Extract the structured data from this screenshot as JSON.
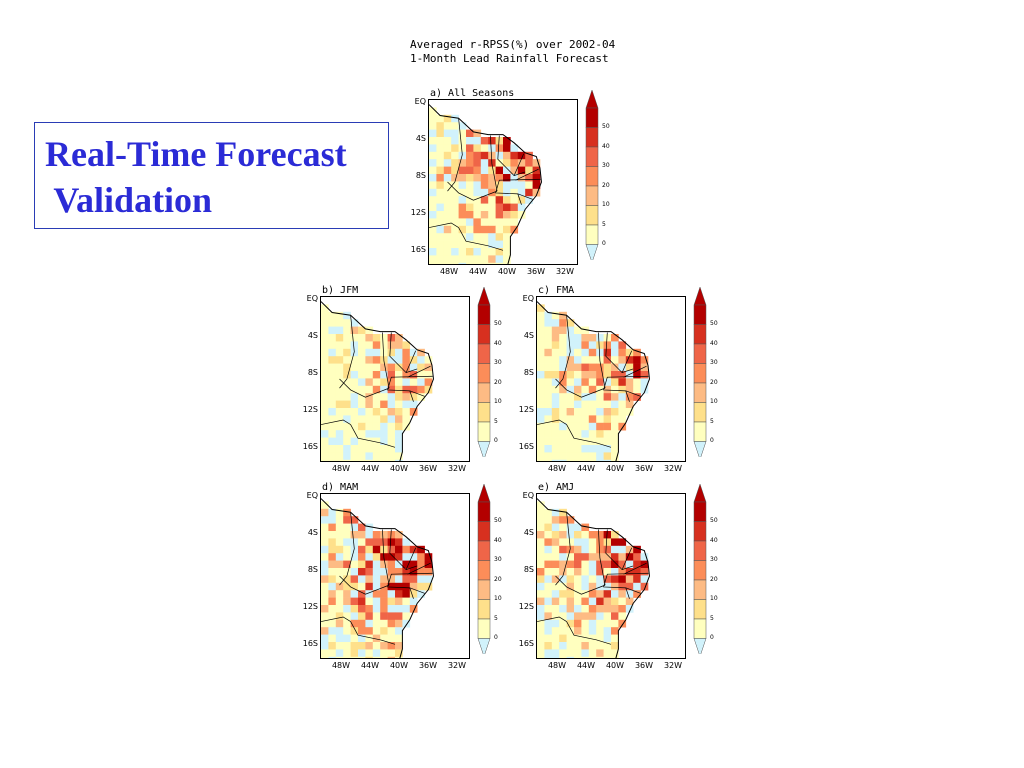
{
  "title": {
    "line1": "Real-Time Forecast",
    "line2": " Validation"
  },
  "header": {
    "line1": "Averaged r-RPSS(%) over 2002-04",
    "line2": "1-Month Lead Rainfall Forecast"
  },
  "axes": {
    "lat_ticks": [
      "EQ",
      "4S",
      "8S",
      "12S",
      "16S"
    ],
    "lon_ticks": [
      "48W",
      "44W",
      "40W",
      "36W",
      "32W"
    ]
  },
  "colorbar": {
    "labels": [
      "50",
      "40",
      "30",
      "20",
      "10",
      "5",
      "0"
    ],
    "colors": [
      "#b30000",
      "#d7301f",
      "#ef6548",
      "#fc8d59",
      "#fdbb84",
      "#fee08b",
      "#ffffbf",
      "#d1f2fb"
    ]
  },
  "panels": [
    {
      "id": "a",
      "label": "a) All Seasons",
      "intensity": 0.6
    },
    {
      "id": "b",
      "label": "b) JFM",
      "intensity": 0.35
    },
    {
      "id": "c",
      "label": "c) FMA",
      "intensity": 0.5
    },
    {
      "id": "d",
      "label": "d) MAM",
      "intensity": 0.8
    },
    {
      "id": "e",
      "label": "e) AMJ",
      "intensity": 0.65
    }
  ]
}
